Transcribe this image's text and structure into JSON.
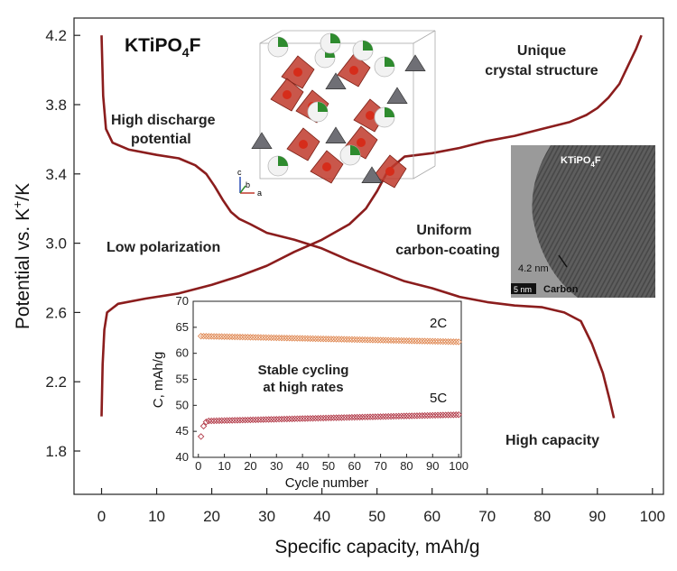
{
  "chart_data": [
    {
      "type": "line",
      "xlabel": "Specific capacity, mAh/g",
      "ylabel_main": "Potential vs. K",
      "ylabel_sup": "+",
      "ylabel_tail": "/K",
      "xlim": [
        -5,
        102
      ],
      "ylim": [
        1.55,
        4.3
      ],
      "xticks": [
        "0",
        "10",
        "20",
        "30",
        "40",
        "50",
        "60",
        "70",
        "80",
        "90",
        "100"
      ],
      "yticks": [
        "1.8",
        "2.2",
        "2.6",
        "3.0",
        "3.4",
        "3.8",
        "4.2"
      ],
      "series": [
        {
          "points": [
            [
              0.0,
              4.2
            ],
            [
              0.3,
              3.85
            ],
            [
              0.8,
              3.66
            ],
            [
              2,
              3.58
            ],
            [
              5,
              3.54
            ],
            [
              10,
              3.51
            ],
            [
              14,
              3.49
            ],
            [
              17,
              3.45
            ],
            [
              19,
              3.4
            ],
            [
              20.5,
              3.33
            ],
            [
              22,
              3.25
            ],
            [
              23.5,
              3.18
            ],
            [
              25,
              3.14
            ],
            [
              27,
              3.11
            ],
            [
              30,
              3.06
            ],
            [
              35,
              3.02
            ],
            [
              40,
              2.97
            ],
            [
              45,
              2.9
            ],
            [
              50,
              2.84
            ],
            [
              55,
              2.78
            ],
            [
              60,
              2.74
            ],
            [
              65,
              2.69
            ],
            [
              70,
              2.66
            ],
            [
              75,
              2.64
            ],
            [
              80,
              2.63
            ],
            [
              84,
              2.6
            ],
            [
              87,
              2.55
            ],
            [
              89,
              2.42
            ],
            [
              91,
              2.25
            ],
            [
              92.2,
              2.1
            ],
            [
              93,
              1.99
            ]
          ]
        },
        {
          "points": [
            [
              0.0,
              2.0
            ],
            [
              0.2,
              2.3
            ],
            [
              0.5,
              2.5
            ],
            [
              1,
              2.6
            ],
            [
              3,
              2.65
            ],
            [
              8,
              2.68
            ],
            [
              14,
              2.71
            ],
            [
              20,
              2.76
            ],
            [
              25,
              2.81
            ],
            [
              30,
              2.87
            ],
            [
              35,
              2.95
            ],
            [
              40,
              3.02
            ],
            [
              45,
              3.11
            ],
            [
              48,
              3.2
            ],
            [
              50,
              3.3
            ],
            [
              52,
              3.42
            ],
            [
              55,
              3.5
            ],
            [
              60,
              3.52
            ],
            [
              65,
              3.55
            ],
            [
              70,
              3.59
            ],
            [
              75,
              3.62
            ],
            [
              80,
              3.66
            ],
            [
              85,
              3.7
            ],
            [
              88,
              3.74
            ],
            [
              90,
              3.78
            ],
            [
              92,
              3.84
            ],
            [
              94,
              3.92
            ],
            [
              95.5,
              4.02
            ],
            [
              97,
              4.12
            ],
            [
              98,
              4.2
            ]
          ]
        }
      ]
    },
    {
      "type": "scatter",
      "xlabel": "Cycle number",
      "ylabel": "C, mAh/g",
      "xlim": [
        -2,
        101
      ],
      "ylim": [
        40,
        70
      ],
      "xticks": [
        "0",
        "10",
        "20",
        "30",
        "40",
        "50",
        "60",
        "70",
        "80",
        "90",
        "100"
      ],
      "yticks": [
        "40",
        "45",
        "50",
        "55",
        "60",
        "65",
        "70"
      ],
      "series": [
        {
          "name": "2C",
          "start": 63.3,
          "end": 62.2,
          "count": 100
        },
        {
          "name": "5C",
          "first": [
            44.0,
            46.0,
            46.8
          ],
          "start": 47.0,
          "end": 48.2,
          "count": 100
        }
      ],
      "annotation": [
        "Stable cycling",
        "at high rates"
      ]
    }
  ],
  "annotations": {
    "title_main": "KTiPO",
    "title_sub": "4",
    "title_end": "F",
    "high_discharge": [
      "High discharge",
      "potential"
    ],
    "low_polarization": "Low polarization",
    "unique": [
      "Unique",
      "crystal structure"
    ],
    "uniform": [
      "Uniform",
      "carbon-coating"
    ],
    "high_capacity": "High capacity"
  },
  "tem": {
    "label_main": "KTiPO",
    "label_sub": "4",
    "label_end": "F",
    "thickness": "4.2 nm",
    "scale": "5 nm",
    "carbon": "Carbon"
  },
  "structure_axes": {
    "c": "c",
    "b": "b",
    "a": "a"
  },
  "colors": {
    "curve": "#8b1d1d",
    "series_2C": "#e08a55",
    "series_5C": "#b23a48",
    "polyhedra": "#c0392b",
    "phosphate": "#6f6f75",
    "fluorine": "#2e8b2e"
  }
}
